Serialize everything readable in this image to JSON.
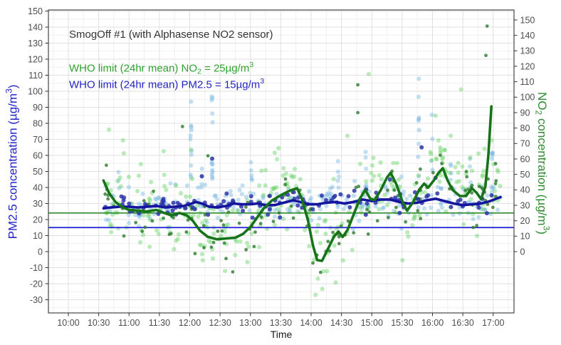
{
  "figure": {
    "background": "#ffffff"
  },
  "chart_data": {
    "type": "scatter",
    "title": "SmogOff #1 (with Alphasense NO2 sensor)",
    "title_color": "#333333",
    "annotations": [
      {
        "id": "who-no2",
        "color": "#2fa32f",
        "limit_value": 25,
        "segments": [
          {
            "t": "WHO limit (24hr mean) NO"
          },
          {
            "t": "2",
            "baseline": "sub"
          },
          {
            "t": " = 25µg/m"
          },
          {
            "t": "3",
            "baseline": "sup"
          }
        ]
      },
      {
        "id": "who-pm25",
        "color": "#2424c4",
        "limit_value": 15,
        "segments": [
          {
            "t": "WHO limit (24hr mean)  PM2.5 = 15µg/m"
          },
          {
            "t": "3",
            "baseline": "sup"
          }
        ]
      }
    ],
    "x_axis": {
      "label": "Time",
      "tick_labels": [
        "10:00",
        "10:30",
        "11:00",
        "11:30",
        "12:00",
        "12:30",
        "13:00",
        "13:30",
        "14:00",
        "14:30",
        "15:00",
        "15:30",
        "16:00",
        "16:30",
        "17:00"
      ],
      "tick_label_color": "#4d4d4d"
    },
    "left_axis": {
      "color": "#2323c8",
      "min": -30,
      "max": 150,
      "step": 10,
      "segments": [
        {
          "t": "PM2.5 concentration (µg/m"
        },
        {
          "t": "3",
          "baseline": "sup"
        },
        {
          "t": ")"
        }
      ]
    },
    "right_axis": {
      "color": "#2e8b2e",
      "min": 0,
      "max": 150,
      "step": 10,
      "segments": [
        {
          "t": "NO"
        },
        {
          "t": "2",
          "baseline": "sub"
        },
        {
          "t": " concentration (µg/m"
        },
        {
          "t": "3",
          "baseline": "sup"
        },
        {
          "t": ")"
        }
      ]
    },
    "reference_lines": [
      {
        "id": "who-no2-limit",
        "axis": "right",
        "value": 25,
        "color": "#2e8b2e"
      },
      {
        "id": "who-pm25-limit",
        "axis": "left",
        "value": 15,
        "color": "#1f1fd9"
      }
    ],
    "grid": {
      "major_color": "#e0e0e0",
      "minor_color": "#f0f0f0"
    },
    "series": [
      {
        "id": "pm25-raw",
        "kind": "points",
        "layer": "raw",
        "axis": "left",
        "color": "#6fb3e0",
        "opacity": 0.42,
        "r": 3.1,
        "n": 250,
        "sd": 5.5,
        "clip": [
          14,
          52
        ],
        "seed": 11,
        "around": "pm25-mean",
        "t_range": [
          10.58,
          17.12
        ],
        "bursts": [
          [
            10.83,
            3,
            38,
            52
          ],
          [
            12.02,
            11,
            44,
            100
          ],
          [
            12.2,
            4,
            40,
            55
          ],
          [
            12.37,
            13,
            42,
            97
          ],
          [
            13.02,
            5,
            40,
            62
          ],
          [
            14.45,
            5,
            38,
            58
          ],
          [
            14.9,
            6,
            40,
            63
          ],
          [
            15.77,
            9,
            45,
            109
          ],
          [
            15.99,
            4,
            50,
            92
          ],
          [
            16.3,
            4,
            40,
            60
          ],
          [
            16.62,
            4,
            40,
            58
          ],
          [
            16.98,
            6,
            38,
            66
          ]
        ]
      },
      {
        "id": "no2-raw",
        "kind": "points",
        "layer": "raw",
        "axis": "right",
        "color": "#5ed05e",
        "opacity": 0.42,
        "r": 3.1,
        "n": 300,
        "sd": 13,
        "clip": [
          -28,
          72
        ],
        "seed": 23,
        "around": "no2-mean",
        "t_range": [
          10.58,
          17.12
        ],
        "guide_clamp": 16.85,
        "outliers": [
          [
            10.67,
            79
          ],
          [
            10.9,
            72
          ],
          [
            11.57,
            65
          ],
          [
            12.02,
            66
          ],
          [
            13.4,
            64
          ],
          [
            14.6,
            75
          ],
          [
            14.95,
            115
          ],
          [
            16.05,
            88
          ],
          [
            16.3,
            75
          ],
          [
            16.47,
            105
          ]
        ]
      },
      {
        "id": "no2-minute",
        "kind": "points",
        "layer": "minute",
        "axis": "right",
        "color": "#2d7a2d",
        "opacity": 0.8,
        "r": 2.4,
        "n": 135,
        "sd": 10,
        "clip": [
          -24,
          68
        ],
        "seed": 37,
        "around": "no2-mean",
        "t_range": [
          10.58,
          17.1
        ],
        "guide_clamp": 16.85,
        "outliers": [
          [
            11.88,
            81
          ],
          [
            12.3,
            62
          ],
          [
            14.77,
            108
          ],
          [
            14.77,
            90
          ],
          [
            16.88,
            127
          ],
          [
            16.9,
            146
          ]
        ]
      },
      {
        "id": "pm25-minute",
        "kind": "points",
        "layer": "minute",
        "axis": "left",
        "color": "#2b35a8",
        "opacity": 0.85,
        "r": 3.0,
        "n": 115,
        "sd": 3.2,
        "clip": [
          21,
          47
        ],
        "seed": 53,
        "around": "pm25-mean",
        "t_range": [
          10.58,
          17.12
        ],
        "outliers": [
          [
            12.2,
            47
          ],
          [
            12.37,
            58
          ],
          [
            15.3,
            45
          ],
          [
            15.82,
            65
          ],
          [
            16.05,
            46
          ]
        ]
      },
      {
        "id": "pm25-mean",
        "kind": "line",
        "axis": "left",
        "color": "#14149c",
        "width": 3.6,
        "points": [
          [
            10.58,
            27
          ],
          [
            10.7,
            27.5
          ],
          [
            10.85,
            28
          ],
          [
            11.0,
            28
          ],
          [
            11.15,
            27.5
          ],
          [
            11.3,
            28
          ],
          [
            11.45,
            28.5
          ],
          [
            11.6,
            27.5
          ],
          [
            11.75,
            28
          ],
          [
            11.9,
            28.5
          ],
          [
            12.0,
            29.5
          ],
          [
            12.1,
            31
          ],
          [
            12.2,
            30
          ],
          [
            12.32,
            28
          ],
          [
            12.45,
            27.5
          ],
          [
            12.6,
            28.5
          ],
          [
            12.72,
            30
          ],
          [
            12.85,
            29.5
          ],
          [
            13.0,
            29.5
          ],
          [
            13.12,
            30
          ],
          [
            13.25,
            29
          ],
          [
            13.4,
            29
          ],
          [
            13.55,
            30.5
          ],
          [
            13.7,
            32
          ],
          [
            13.82,
            31
          ],
          [
            13.95,
            29.5
          ],
          [
            14.1,
            29.5
          ],
          [
            14.25,
            30.5
          ],
          [
            14.4,
            31
          ],
          [
            14.55,
            30
          ],
          [
            14.7,
            31
          ],
          [
            14.85,
            32.5
          ],
          [
            15.0,
            31.5
          ],
          [
            15.15,
            32.5
          ],
          [
            15.3,
            32.5
          ],
          [
            15.45,
            31
          ],
          [
            15.6,
            30
          ],
          [
            15.75,
            30.5
          ],
          [
            15.9,
            32
          ],
          [
            16.05,
            33
          ],
          [
            16.2,
            31.5
          ],
          [
            16.35,
            30
          ],
          [
            16.5,
            29
          ],
          [
            16.65,
            29.5
          ],
          [
            16.8,
            30
          ],
          [
            16.95,
            31.5
          ],
          [
            17.12,
            34
          ]
        ]
      },
      {
        "id": "no2-mean",
        "kind": "line",
        "axis": "right",
        "color": "#177317",
        "width": 3.6,
        "points": [
          [
            10.58,
            46
          ],
          [
            10.67,
            38
          ],
          [
            10.78,
            32
          ],
          [
            10.9,
            28.5
          ],
          [
            11.0,
            27
          ],
          [
            11.15,
            26.5
          ],
          [
            11.3,
            26
          ],
          [
            11.45,
            27
          ],
          [
            11.58,
            25
          ],
          [
            11.7,
            23.5
          ],
          [
            11.83,
            25
          ],
          [
            11.95,
            23.5
          ],
          [
            12.05,
            20
          ],
          [
            12.17,
            13.5
          ],
          [
            12.3,
            9.5
          ],
          [
            12.45,
            8
          ],
          [
            12.6,
            8.5
          ],
          [
            12.75,
            9
          ],
          [
            12.88,
            11.5
          ],
          [
            13.0,
            16
          ],
          [
            13.1,
            21.5
          ],
          [
            13.22,
            28
          ],
          [
            13.35,
            33
          ],
          [
            13.5,
            36.5
          ],
          [
            13.65,
            39.5
          ],
          [
            13.77,
            41
          ],
          [
            13.85,
            34
          ],
          [
            13.95,
            20
          ],
          [
            14.03,
            4
          ],
          [
            14.1,
            -5.5
          ],
          [
            14.18,
            -6
          ],
          [
            14.28,
            2
          ],
          [
            14.38,
            10
          ],
          [
            14.45,
            13
          ],
          [
            14.52,
            9.5
          ],
          [
            14.6,
            14
          ],
          [
            14.7,
            24
          ],
          [
            14.8,
            34
          ],
          [
            14.89,
            40
          ],
          [
            14.98,
            34
          ],
          [
            15.05,
            33.5
          ],
          [
            15.15,
            40
          ],
          [
            15.25,
            48
          ],
          [
            15.31,
            51
          ],
          [
            15.4,
            44
          ],
          [
            15.5,
            33
          ],
          [
            15.58,
            26.5
          ],
          [
            15.68,
            32
          ],
          [
            15.78,
            40
          ],
          [
            15.86,
            44
          ],
          [
            15.93,
            41.5
          ],
          [
            16.02,
            46
          ],
          [
            16.1,
            51
          ],
          [
            16.17,
            54
          ],
          [
            16.25,
            46
          ],
          [
            16.33,
            40
          ],
          [
            16.45,
            36
          ],
          [
            16.55,
            36
          ],
          [
            16.65,
            41
          ],
          [
            16.73,
            38
          ],
          [
            16.8,
            34
          ],
          [
            16.87,
            42
          ],
          [
            16.92,
            62
          ],
          [
            16.97,
            94
          ]
        ]
      }
    ]
  }
}
